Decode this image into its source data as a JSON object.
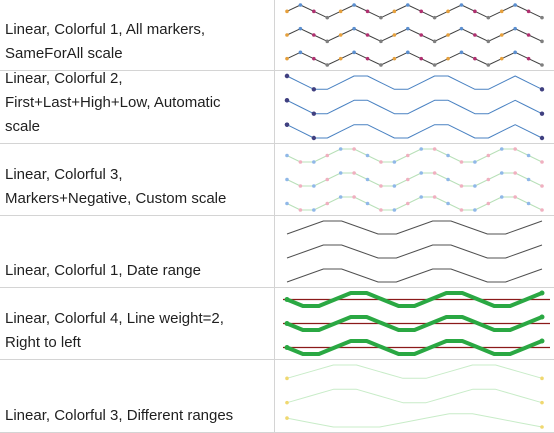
{
  "rows": [
    {
      "label": "Linear, Colorful 1, All markers,\nSameForAll scale",
      "sparklines": [
        {
          "values": [
            2,
            3,
            2,
            1,
            2,
            3,
            2,
            1,
            2,
            3,
            2,
            1,
            2,
            3,
            2,
            1,
            2,
            3,
            2,
            1
          ],
          "color": "#404040",
          "weight": 1,
          "markers": "all"
        },
        {
          "values": [
            2,
            3,
            2,
            1,
            2,
            3,
            2,
            1,
            2,
            3,
            2,
            1,
            2,
            3,
            2,
            1,
            2,
            3,
            2,
            1
          ],
          "color": "#404040",
          "weight": 1,
          "markers": "all"
        },
        {
          "values": [
            2,
            3,
            2,
            1,
            2,
            3,
            2,
            1,
            2,
            3,
            2,
            1,
            2,
            3,
            2,
            1,
            2,
            3,
            2,
            1
          ],
          "color": "#404040",
          "weight": 1,
          "markers": "all"
        }
      ],
      "marker_colors": [
        "#e6a03c",
        "#5b8fd0",
        "#b03070",
        "#7f7f7f"
      ]
    },
    {
      "label": "Linear, Colorful 2,\nFirst+Last+High+Low, Automatic\nscale",
      "sparklines": [
        {
          "values": [
            3,
            2,
            1,
            1,
            2,
            3,
            3,
            2,
            1,
            1,
            2,
            3,
            3,
            2,
            1,
            1,
            2,
            3,
            2,
            1
          ],
          "color": "#4a82c2",
          "weight": 1,
          "markers": "first-last-high-low"
        },
        {
          "values": [
            3,
            2,
            1,
            1,
            2,
            3,
            3,
            2,
            1,
            1,
            2,
            3,
            3,
            2,
            1,
            1,
            2,
            3,
            2,
            1
          ],
          "color": "#4a82c2",
          "weight": 1,
          "markers": "first-last-high-low"
        },
        {
          "values": [
            3,
            2,
            1,
            1,
            2,
            3,
            3,
            2,
            1,
            1,
            2,
            3,
            3,
            2,
            1,
            1,
            2,
            3,
            2,
            1
          ],
          "color": "#4a82c2",
          "weight": 1,
          "markers": "first-last-high-low"
        }
      ],
      "marker_color": "#404080"
    },
    {
      "label": "Linear, Colorful 3,\nMarkers+Negative, Custom scale",
      "sparklines": [
        {
          "values": [
            2,
            1,
            1,
            2,
            3,
            3,
            2,
            1,
            1,
            2,
            3,
            3,
            2,
            1,
            1,
            2,
            3,
            3,
            2,
            1
          ],
          "color": "#b8e0b8",
          "weight": 1,
          "markers": "all"
        },
        {
          "values": [
            2,
            1,
            1,
            2,
            3,
            3,
            2,
            1,
            1,
            2,
            3,
            3,
            2,
            1,
            1,
            2,
            3,
            3,
            2,
            1
          ],
          "color": "#b8e0b8",
          "weight": 1,
          "markers": "all"
        },
        {
          "values": [
            2,
            1,
            1,
            2,
            3,
            3,
            2,
            1,
            1,
            2,
            3,
            3,
            2,
            1,
            1,
            2,
            3,
            3,
            2,
            1
          ],
          "color": "#b8e0b8",
          "weight": 1,
          "markers": "all"
        }
      ],
      "marker_colors": [
        "#90b8e8",
        "#f0b0c0"
      ]
    },
    {
      "label": "Linear, Colorful 1, Date range",
      "sparklines": [
        {
          "values": [
            1,
            2,
            3,
            3,
            2,
            1,
            1,
            2,
            3,
            3,
            2,
            1,
            1,
            2,
            3
          ],
          "color": "#505050",
          "weight": 1,
          "markers": "none"
        },
        {
          "values": [
            1,
            2,
            3,
            3,
            2,
            1,
            1,
            2,
            3,
            3,
            2,
            1,
            1,
            2,
            3
          ],
          "color": "#505050",
          "weight": 1,
          "markers": "none"
        },
        {
          "values": [
            1,
            2,
            3,
            3,
            2,
            1,
            1,
            2,
            3,
            3,
            2,
            1,
            1,
            2,
            3
          ],
          "color": "#505050",
          "weight": 1,
          "markers": "none"
        }
      ]
    },
    {
      "label": "Linear, Colorful 4, Line weight=2,\nRight to left",
      "sparklines": [
        {
          "values": [
            2,
            1,
            1,
            2,
            3,
            3,
            2,
            1,
            1,
            2,
            3,
            3,
            2,
            1,
            1,
            2,
            3
          ],
          "color": "#2aa843",
          "weight": 4,
          "markers": "ends"
        },
        {
          "values": [
            2,
            1,
            1,
            2,
            3,
            3,
            2,
            1,
            1,
            2,
            3,
            3,
            2,
            1,
            1,
            2,
            3
          ],
          "color": "#2aa843",
          "weight": 4,
          "markers": "ends"
        },
        {
          "values": [
            2,
            1,
            1,
            2,
            3,
            3,
            2,
            1,
            1,
            2,
            3,
            3,
            2,
            1,
            1,
            2,
            3
          ],
          "color": "#2aa843",
          "weight": 4,
          "markers": "ends"
        }
      ],
      "axis_color": "#8b1a1a"
    },
    {
      "label": "Linear, Colorful 3, Different ranges",
      "sparklines": [
        {
          "values": [
            1,
            2,
            3,
            3,
            2,
            1,
            1,
            2,
            3,
            3,
            2,
            1
          ],
          "color": "#c8ecc8",
          "weight": 1,
          "markers": "first-last"
        },
        {
          "values": [
            1,
            2,
            3,
            3,
            2,
            1,
            1,
            2,
            3,
            3,
            2,
            1
          ],
          "color": "#c8ecc8",
          "weight": 1,
          "markers": "first-last"
        },
        {
          "values": [
            2,
            1,
            0,
            0,
            0,
            1,
            2,
            3,
            3,
            2,
            1,
            0
          ],
          "color": "#c8ecc8",
          "weight": 1,
          "markers": "first-last"
        }
      ],
      "marker_color": "#f0d870"
    }
  ]
}
